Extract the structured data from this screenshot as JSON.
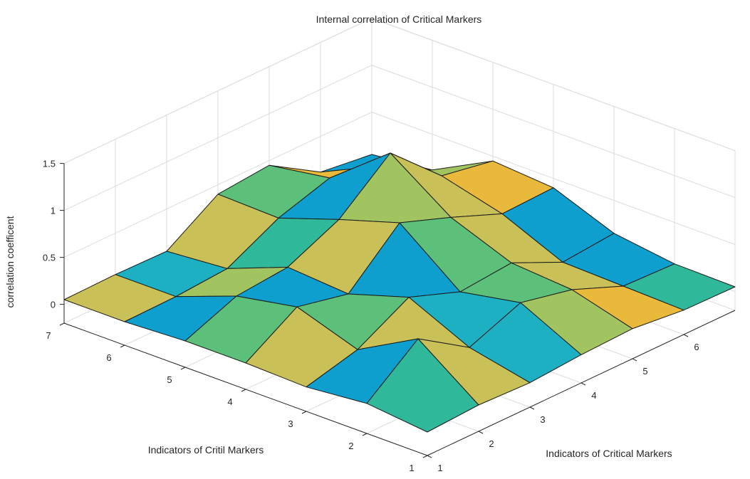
{
  "chart_data": {
    "type": "surface",
    "title": "Internal correlation of Critical Markers",
    "xlabel": "Indicators of Critical Markers",
    "ylabel": "Indicators of Critil Markers",
    "zlabel": "correlation coefficent",
    "x_ticks": [
      "1",
      "2",
      "3",
      "4",
      "5",
      "6"
    ],
    "y_ticks": [
      "1",
      "2",
      "3",
      "4",
      "5",
      "6",
      "7"
    ],
    "z_ticks": [
      "0",
      "0.5",
      "1",
      "1.5"
    ],
    "xlim": [
      1,
      7
    ],
    "ylim": [
      1,
      7
    ],
    "zlim": [
      -0.2,
      1.5
    ],
    "grid": true,
    "x": [
      1,
      2,
      3,
      4,
      5,
      6,
      7
    ],
    "y": [
      1,
      2,
      3,
      4,
      5,
      6,
      7
    ],
    "z": [
      [
        0.05,
        0.08,
        0.06,
        0.1,
        0.12,
        0.06,
        0.05
      ],
      [
        0.12,
        0.55,
        0.2,
        0.42,
        0.3,
        0.08,
        0.06
      ],
      [
        0.06,
        0.2,
        0.5,
        0.3,
        0.35,
        0.1,
        0.15
      ],
      [
        0.08,
        0.42,
        0.3,
        0.8,
        0.6,
        0.38,
        0.4
      ],
      [
        0.08,
        0.3,
        0.35,
        0.6,
        1.05,
        0.55,
        0.45
      ],
      [
        0.05,
        0.06,
        0.1,
        0.38,
        0.55,
        0.42,
        0.12
      ],
      [
        0.05,
        0.06,
        0.05,
        0.4,
        0.45,
        0.12,
        0.05
      ]
    ],
    "colormap": [
      "#0f9fcf",
      "#1cb0c2",
      "#30b89a",
      "#5cc07a",
      "#a2c460",
      "#c9c157",
      "#e8b93a"
    ]
  }
}
